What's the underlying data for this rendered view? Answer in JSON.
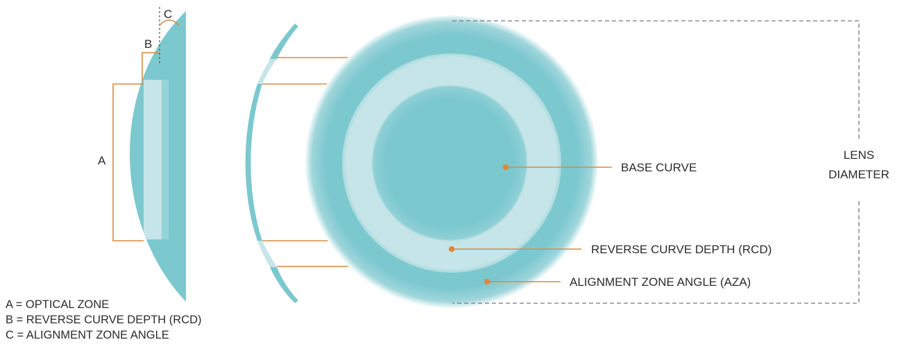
{
  "labels": {
    "c": "C",
    "b": "B",
    "a": "A",
    "lens_diameter_line1": "LENS",
    "lens_diameter_line2": "DIAMETER",
    "base_curve": "BASE CURVE",
    "reverse_curve_depth": "REVERSE CURVE DEPTH (RCD)",
    "alignment_zone_angle": "ALIGNMENT ZONE ANGLE (AZA)"
  },
  "legend": {
    "a": "A = OPTICAL ZONE",
    "b": "B = REVERSE CURVE DEPTH (RCD)",
    "c": "C = ALIGNMENT ZONE ANGLE"
  },
  "colors": {
    "teal": "#7cc8cf",
    "light_teal": "#c6e5e8",
    "orange": "#d98a3f",
    "dashed": "#777777"
  }
}
